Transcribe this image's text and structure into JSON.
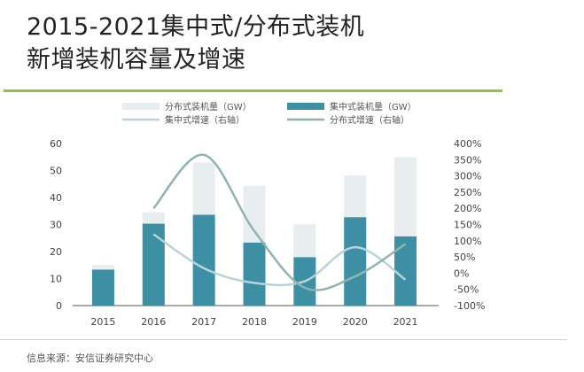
{
  "title": {
    "line1": "2015-2021集中式/分布式装机",
    "line2": "新增装机容量及增速"
  },
  "source": "信息来源：安信证券研究中心",
  "colors": {
    "centralized_bar": "#3d8fa3",
    "distributed_bar": "#e8eef0",
    "centralized_line": "#b9d3db",
    "distributed_line": "#8fb3b0",
    "accent_rule": "#8cc63f"
  },
  "chart_data": {
    "type": "bar",
    "categories": [
      "2015",
      "2016",
      "2017",
      "2018",
      "2019",
      "2020",
      "2021"
    ],
    "series": [
      {
        "name": "集中式装机量（GW）",
        "kind": "bar",
        "values": [
          13.3,
          30.3,
          33.6,
          23.3,
          17.9,
          32.7,
          25.6
        ]
      },
      {
        "name": "分布式装机量（GW）",
        "kind": "bar",
        "values": [
          15.0,
          34.5,
          53.0,
          44.3,
          30.1,
          48.2,
          54.9
        ]
      },
      {
        "name": "集中式增速（右轴）",
        "kind": "line",
        "axis": "right",
        "values": [
          null,
          120,
          15,
          -30,
          -25,
          80,
          -20
        ]
      },
      {
        "name": "分布式增速（右轴）",
        "kind": "line",
        "axis": "right",
        "values": [
          null,
          200,
          365,
          130,
          -45,
          -10,
          90
        ]
      }
    ],
    "stacked_total_bars": true,
    "ylim": [
      0,
      60
    ],
    "yticks": [
      0,
      10,
      20,
      30,
      40,
      50,
      60
    ],
    "y2lim": [
      -100,
      400
    ],
    "y2ticks": [
      "-100%",
      "-50%",
      "0%",
      "50%",
      "100%",
      "150%",
      "200%",
      "250%",
      "300%",
      "350%",
      "400%"
    ],
    "legend_position": "top",
    "grid": false
  }
}
